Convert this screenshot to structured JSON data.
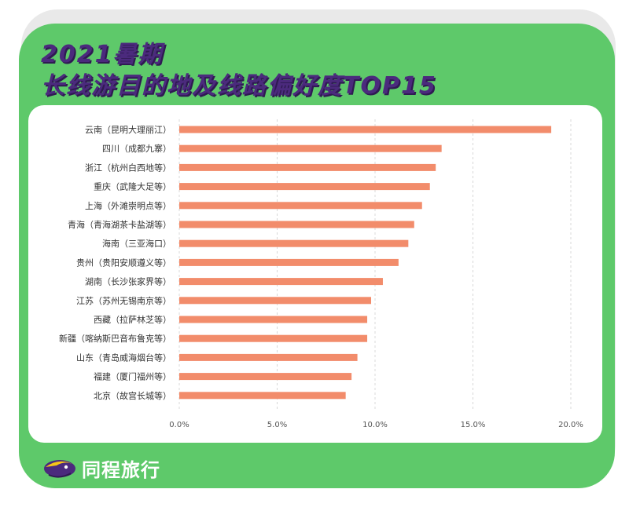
{
  "header": {
    "title_line1": "2021暑期",
    "title_line2": "长线游目的地及线路偏好度TOP15"
  },
  "brand": {
    "name": "同程旅行",
    "logo_icon": "tongcheng-bird-logo-icon"
  },
  "colors": {
    "frame": "#5ec96a",
    "title": "#4b2a7d",
    "bar": "#f28c6b",
    "grid": "#d8d8d8"
  },
  "chart_data": {
    "type": "bar",
    "orientation": "horizontal",
    "title": "长线游目的地及线路偏好度TOP15",
    "categories": [
      "云南（昆明大理丽江）",
      "四川（成都九寨）",
      "浙江（杭州白西地等）",
      "重庆（武隆大足等）",
      "上海（外滩崇明点等）",
      "青海（青海湖茶卡盐湖等）",
      "海南（三亚海口）",
      "贵州（贵阳安顺遵义等）",
      "湖南（长沙张家界等）",
      "江苏（苏州无锡南京等）",
      "西藏（拉萨林芝等）",
      "新疆（喀纳斯巴音布鲁克等）",
      "山东（青岛威海烟台等）",
      "福建（厦门福州等）",
      "北京（故宫长城等）"
    ],
    "values": [
      19.0,
      13.4,
      13.1,
      12.8,
      12.4,
      12.0,
      11.7,
      11.2,
      10.4,
      9.8,
      9.6,
      9.6,
      9.1,
      8.8,
      8.5
    ],
    "x_ticks": [
      "0.0%",
      "5.0%",
      "10.0%",
      "15.0%",
      "20.0%"
    ],
    "xlim": [
      0,
      20
    ],
    "grid": true,
    "xlabel": "",
    "ylabel": ""
  }
}
